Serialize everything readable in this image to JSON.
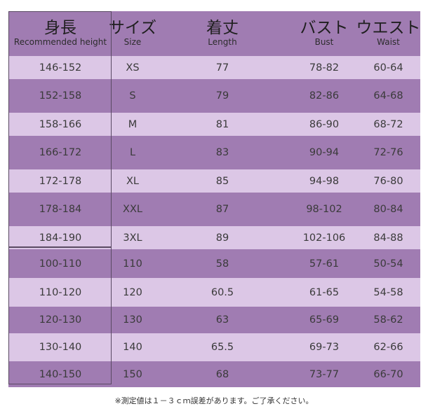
{
  "table": {
    "headers": [
      {
        "main": "身長",
        "sub": "Recommended height"
      },
      {
        "main": "サイズ",
        "sub": "Size"
      },
      {
        "main": "着丈",
        "sub": "Length"
      },
      {
        "main": "バスト",
        "sub": "Bust"
      },
      {
        "main": "ウエスト",
        "sub": "Waist"
      }
    ],
    "rows": [
      [
        "146-152",
        "XS",
        "77",
        "78-82",
        "60-64"
      ],
      [
        "152-158",
        "S",
        "79",
        "82-86",
        "64-68"
      ],
      [
        "158-166",
        "M",
        "81",
        "86-90",
        "68-72"
      ],
      [
        "166-172",
        "L",
        "83",
        "90-94",
        "72-76"
      ],
      [
        "172-178",
        "XL",
        "85",
        "94-98",
        "76-80"
      ],
      [
        "178-184",
        "XXL",
        "87",
        "98-102",
        "80-84"
      ],
      [
        "184-190",
        "3XL",
        "89",
        "102-106",
        "84-88"
      ],
      [
        "100-110",
        "110",
        "58",
        "57-61",
        "50-54"
      ],
      [
        "110-120",
        "120",
        "60.5",
        "61-65",
        "54-58"
      ],
      [
        "120-130",
        "130",
        "63",
        "65-69",
        "58-62"
      ],
      [
        "130-140",
        "140",
        "65.5",
        "69-73",
        "62-66"
      ],
      [
        "140-150",
        "150",
        "68",
        "73-77",
        "66-70"
      ]
    ]
  },
  "note": "※測定値は１－３ｃｍ誤差があります。ご了承ください。",
  "colors": {
    "header": "#a07cb2",
    "row_dark": "#a07cb2",
    "row_light": "#dcc7e6"
  }
}
